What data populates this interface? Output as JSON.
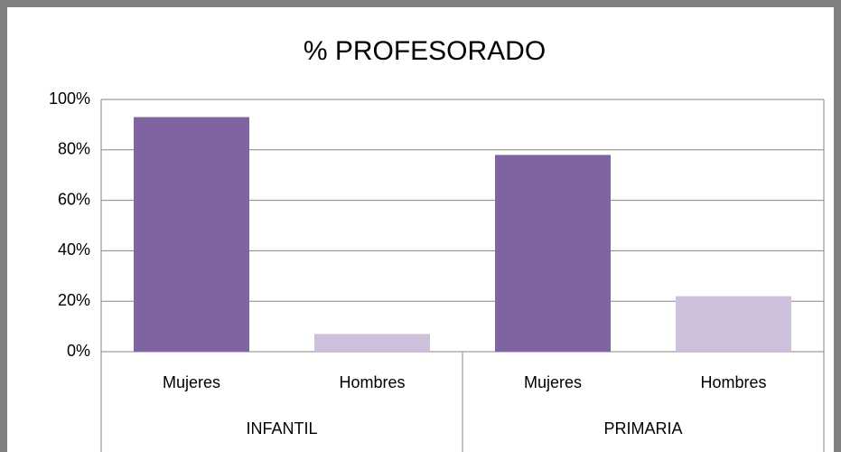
{
  "chart_data": {
    "type": "bar",
    "title": "% PROFESORADO",
    "categories": [
      "Mujeres",
      "Hombres",
      "Mujeres",
      "Hombres"
    ],
    "groups": [
      "INFANTIL",
      "PRIMARIA"
    ],
    "values": [
      93,
      7,
      78,
      22
    ],
    "colors": [
      "#8064a2",
      "#ccc0da",
      "#8064a2",
      "#ccc0da"
    ],
    "ylim": [
      0,
      100
    ],
    "yticks": [
      {
        "value": 0,
        "label": "0%"
      },
      {
        "value": 20,
        "label": "20%"
      },
      {
        "value": 40,
        "label": "40%"
      },
      {
        "value": 60,
        "label": "60%"
      },
      {
        "value": 80,
        "label": "80%"
      },
      {
        "value": 100,
        "label": "100%"
      }
    ],
    "grid": true
  }
}
